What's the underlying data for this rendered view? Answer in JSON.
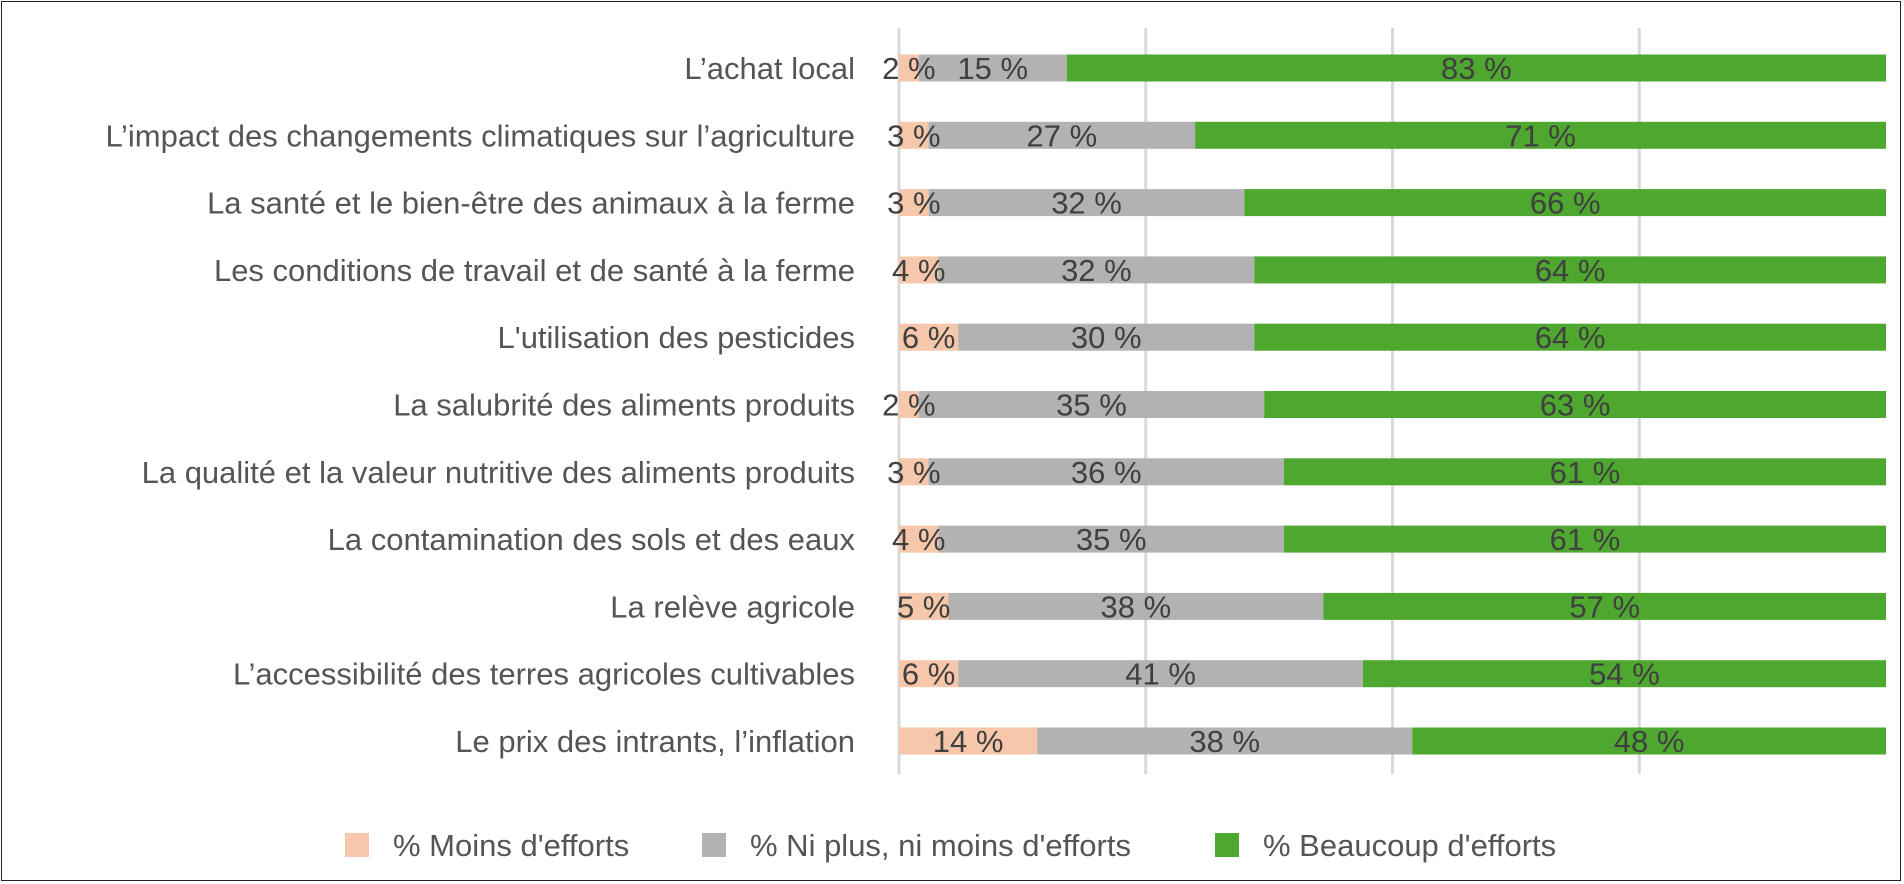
{
  "chart_data": {
    "type": "bar",
    "orientation": "horizontal",
    "stacked": true,
    "categories": [
      "L’achat local",
      "L’impact des changements climatiques sur l’agriculture",
      "La santé et le bien-être des animaux à la ferme",
      "Les conditions de travail et de santé à la ferme",
      "L'utilisation des pesticides",
      "La salubrité des aliments produits",
      "La qualité et la valeur nutritive des aliments produits",
      "La contamination des sols et des eaux",
      "La relève agricole",
      "L’accessibilité des terres agricoles cultivables",
      "Le prix des intrants, l’inflation"
    ],
    "series": [
      {
        "name": "% Moins d'efforts",
        "color": "#f6c7ab",
        "values": [
          2,
          3,
          3,
          4,
          6,
          2,
          3,
          4,
          5,
          6,
          14
        ],
        "labels": [
          "2 %",
          "3 %",
          "3 %",
          "4 %",
          "6 %",
          "2 %",
          "3 %",
          "4 %",
          "5 %",
          "6 %",
          "14 %"
        ]
      },
      {
        "name": "% Ni plus, ni moins d'efforts",
        "color": "#b2b2b2",
        "values": [
          15,
          27,
          32,
          32,
          30,
          35,
          36,
          35,
          38,
          41,
          38
        ],
        "labels": [
          "15 %",
          "27 %",
          "32 %",
          "32 %",
          "30 %",
          "35 %",
          "36 %",
          "35 %",
          "38 %",
          "41 %",
          "38 %"
        ]
      },
      {
        "name": "% Beaucoup d'efforts",
        "color": "#4ea72e",
        "values": [
          83,
          71,
          66,
          64,
          64,
          63,
          61,
          61,
          57,
          54,
          48
        ],
        "labels": [
          "83 %",
          "71 %",
          "66 %",
          "64 %",
          "64 %",
          "63 %",
          "61 %",
          "61 %",
          "57 %",
          "54 %",
          "48 %"
        ]
      }
    ],
    "xlim": [
      0,
      100
    ],
    "grid": true,
    "legend_position": "bottom"
  }
}
